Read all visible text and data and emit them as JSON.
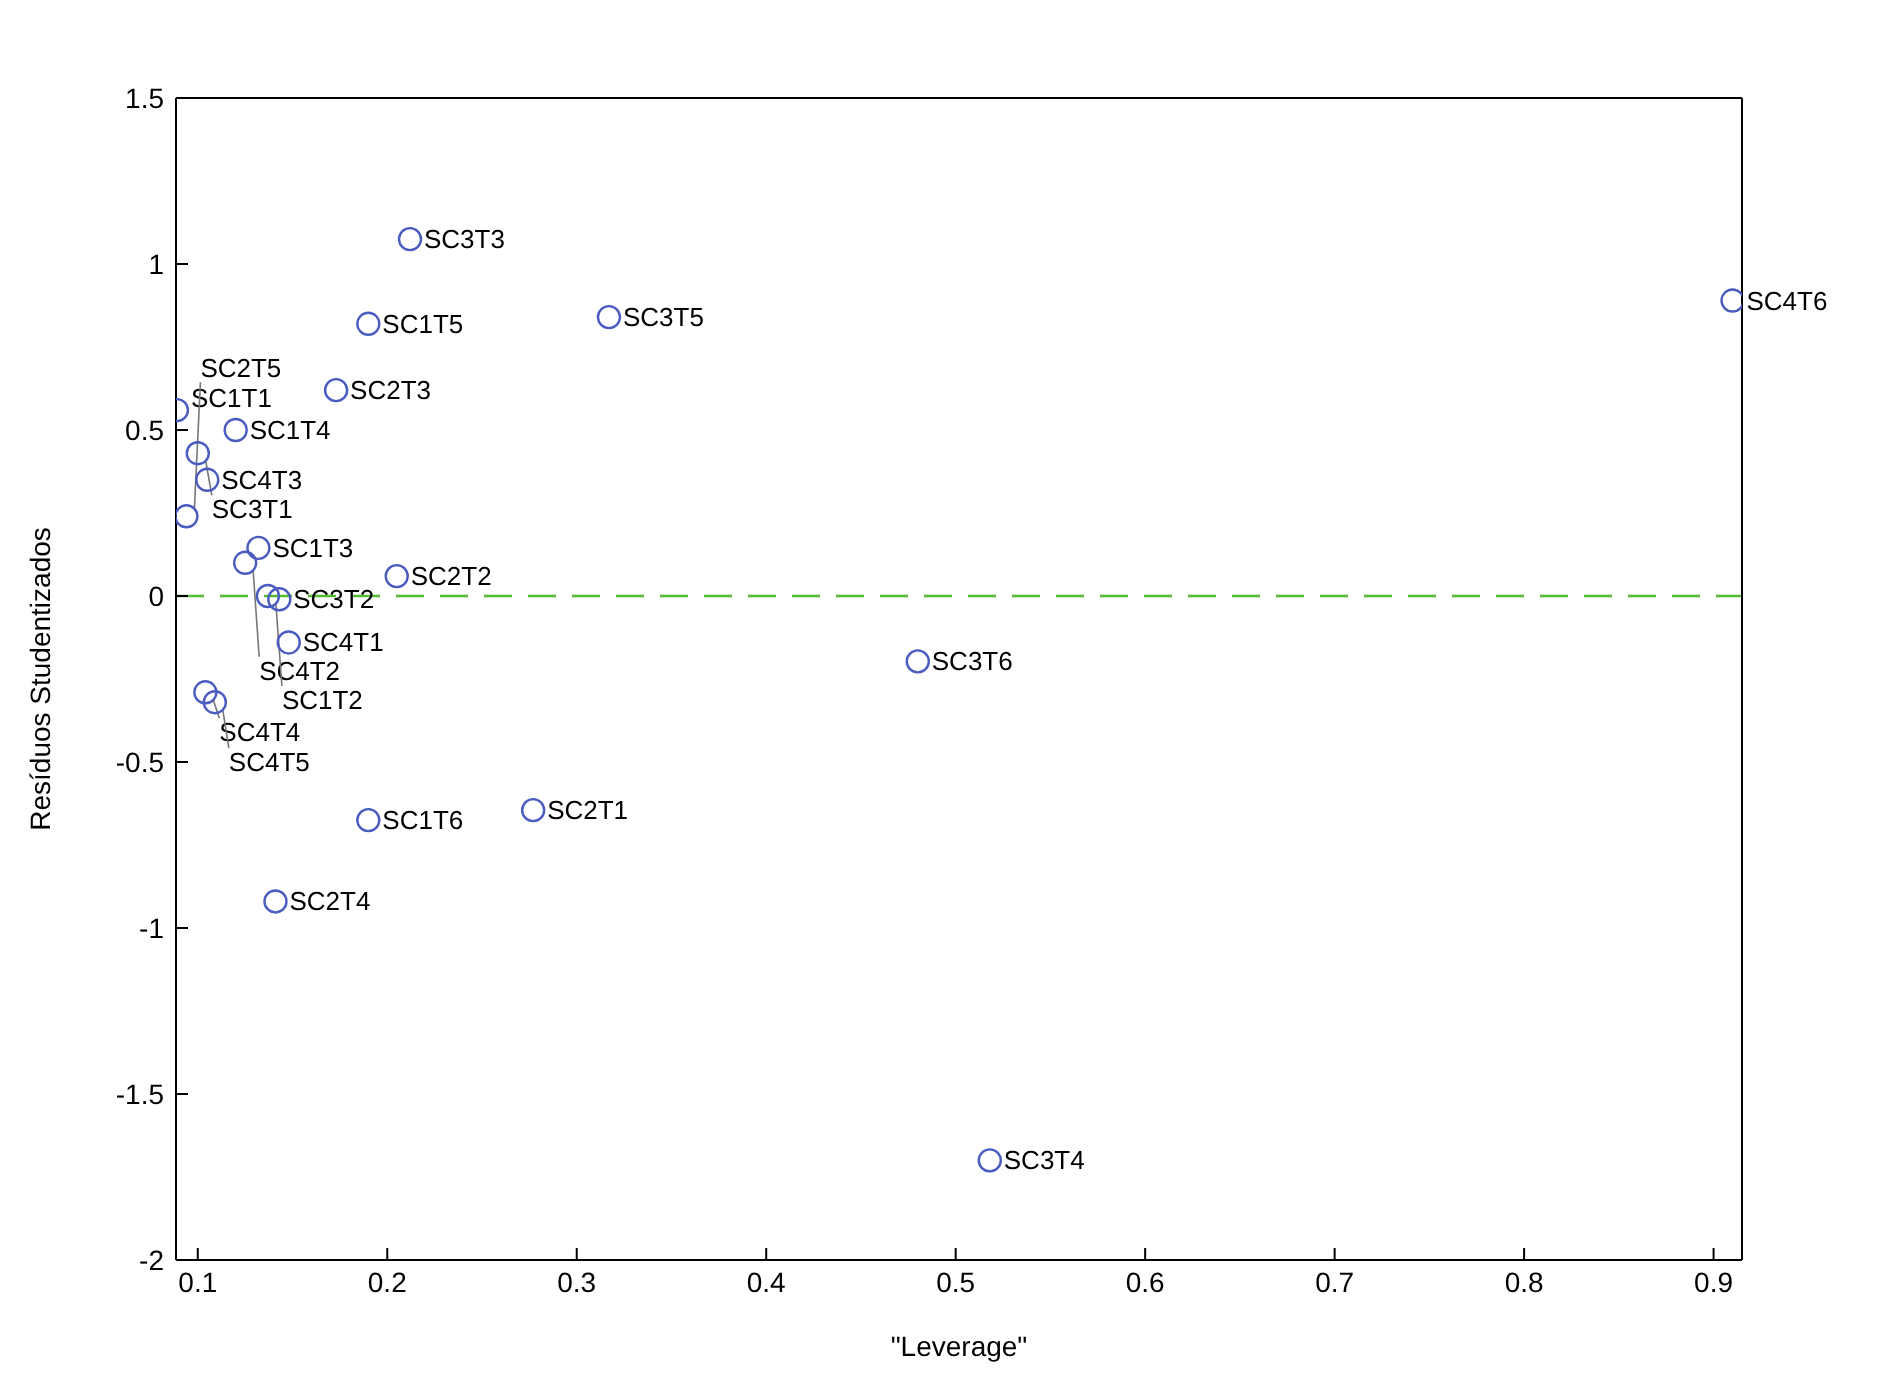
{
  "chart_data": {
    "type": "scatter",
    "xlabel": "\"Leverage\"",
    "ylabel": "Resíduos Studentizados",
    "xlim": [
      0.0885,
      0.915
    ],
    "ylim": [
      -2,
      1.5
    ],
    "xticks": [
      0.1,
      0.2,
      0.3,
      0.4,
      0.5,
      0.6,
      0.7,
      0.8,
      0.9
    ],
    "yticks": [
      -2,
      -1.5,
      -1,
      -0.5,
      0,
      0.5,
      1,
      1.5
    ],
    "marker": "circle",
    "legend": false,
    "series": [
      {
        "color": "#4a5cc0",
        "x": [
          0.212,
          0.19,
          0.317,
          0.173,
          0.91,
          0.089,
          0.12,
          0.1,
          0.105,
          0.094,
          0.132,
          0.125,
          0.205,
          0.137,
          0.143,
          0.148,
          0.104,
          0.109,
          0.19,
          0.277,
          0.141,
          0.48,
          0.518
        ],
        "values": [
          1.075,
          0.82,
          0.84,
          0.62,
          0.89,
          0.56,
          0.5,
          0.43,
          0.35,
          0.24,
          0.145,
          0.1,
          0.06,
          0.0,
          -0.01,
          -0.14,
          -0.29,
          -0.32,
          -0.675,
          -0.645,
          -0.92,
          -0.197,
          -1.7
        ]
      }
    ],
    "annotations": [
      {
        "text": "SC3T3",
        "x": 0.212,
        "y": 1.075
      },
      {
        "text": "SC1T5",
        "x": 0.19,
        "y": 0.82
      },
      {
        "text": "SC3T5",
        "x": 0.317,
        "y": 0.84
      },
      {
        "text": "SC2T3",
        "x": 0.173,
        "y": 0.62
      },
      {
        "text": "SC4T6",
        "x": 0.91,
        "y": 0.89
      },
      {
        "text": "SC1T1",
        "x": 0.089,
        "y": 0.56
      },
      {
        "text": "SC1T4",
        "x": 0.12,
        "y": 0.5
      },
      {
        "text": "SC3T1",
        "x": 0.1,
        "y": 0.43
      },
      {
        "text": "SC4T3",
        "x": 0.105,
        "y": 0.35
      },
      {
        "text": "SC2T5",
        "x": 0.094,
        "y": 0.24
      },
      {
        "text": "SC1T3",
        "x": 0.132,
        "y": 0.145
      },
      {
        "text": "SC4T2",
        "x": 0.125,
        "y": 0.1
      },
      {
        "text": "SC2T2",
        "x": 0.205,
        "y": 0.06
      },
      {
        "text": "SC1T2",
        "x": 0.137,
        "y": 0.0
      },
      {
        "text": "SC3T2",
        "x": 0.143,
        "y": -0.01
      },
      {
        "text": "SC4T1",
        "x": 0.148,
        "y": -0.14
      },
      {
        "text": "SC4T4",
        "x": 0.104,
        "y": -0.29
      },
      {
        "text": "SC4T5",
        "x": 0.109,
        "y": -0.32
      },
      {
        "text": "SC1T6",
        "x": 0.19,
        "y": -0.675
      },
      {
        "text": "SC2T1",
        "x": 0.277,
        "y": -0.645
      },
      {
        "text": "SC2T4",
        "x": 0.141,
        "y": -0.92
      },
      {
        "text": "SC3T6",
        "x": 0.48,
        "y": -0.197
      },
      {
        "text": "SC3T4",
        "x": 0.518,
        "y": -1.7
      }
    ],
    "ref_lines": [
      {
        "axis": "y",
        "value": 0,
        "color": "#55bb33",
        "line_style": "dashed"
      }
    ]
  }
}
